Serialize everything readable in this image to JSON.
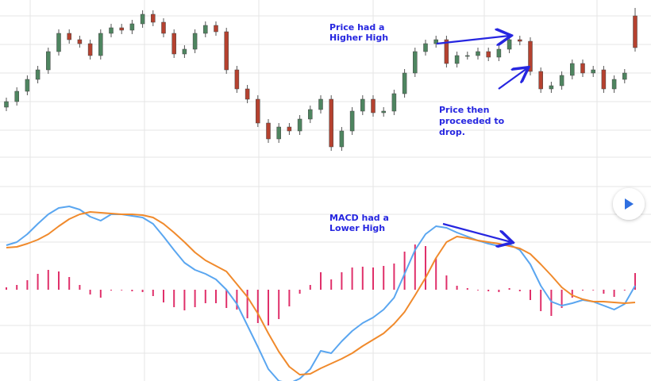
{
  "chart_data": [
    {
      "type": "candlestick",
      "open": [
        85,
        92,
        105,
        120,
        132,
        155,
        178,
        170,
        165,
        150,
        178,
        185,
        182,
        190,
        202,
        192,
        178,
        152,
        158,
        178,
        188,
        180,
        132,
        108,
        95,
        65,
        45,
        60,
        55,
        70,
        82,
        95,
        35,
        55,
        80,
        95,
        78,
        80,
        102,
        128,
        155,
        165,
        170,
        140,
        150,
        150,
        155,
        148,
        158,
        170,
        168,
        130,
        108,
        112,
        125,
        140,
        128,
        132,
        108,
        120,
        200
      ],
      "high": [
        97,
        110,
        125,
        137,
        160,
        183,
        183,
        175,
        170,
        183,
        190,
        190,
        195,
        207,
        207,
        197,
        183,
        163,
        183,
        193,
        193,
        185,
        137,
        113,
        100,
        70,
        65,
        65,
        75,
        87,
        100,
        100,
        60,
        85,
        100,
        100,
        85,
        107,
        133,
        160,
        170,
        175,
        175,
        155,
        155,
        160,
        160,
        163,
        175,
        175,
        173,
        135,
        117,
        130,
        145,
        145,
        137,
        137,
        125,
        133,
        210
      ],
      "low": [
        80,
        87,
        100,
        115,
        127,
        150,
        165,
        160,
        145,
        145,
        173,
        177,
        177,
        185,
        187,
        173,
        147,
        147,
        153,
        173,
        175,
        127,
        103,
        90,
        60,
        40,
        40,
        50,
        50,
        65,
        77,
        30,
        30,
        50,
        75,
        73,
        73,
        75,
        97,
        123,
        150,
        160,
        135,
        135,
        145,
        145,
        143,
        143,
        153,
        163,
        125,
        103,
        103,
        107,
        120,
        123,
        123,
        103,
        103,
        115,
        155
      ],
      "close": [
        92,
        105,
        120,
        132,
        155,
        178,
        170,
        165,
        150,
        178,
        185,
        182,
        190,
        202,
        192,
        178,
        152,
        158,
        178,
        188,
        180,
        132,
        108,
        95,
        65,
        45,
        60,
        55,
        70,
        82,
        95,
        35,
        55,
        80,
        95,
        78,
        80,
        102,
        128,
        155,
        165,
        170,
        140,
        150,
        150,
        155,
        148,
        158,
        170,
        168,
        130,
        108,
        112,
        125,
        140,
        128,
        132,
        108,
        120,
        128,
        160
      ],
      "up_color": "#4e8560",
      "down_color": "#b5412f",
      "ylim": [
        0,
        220
      ],
      "grid": true,
      "annotations": [
        {
          "lines": [
            "Price had a",
            "Higher High"
          ],
          "color": "#2626e0"
        },
        {
          "lines": [
            "Price then",
            "proceeded to",
            "drop."
          ],
          "color": "#2626e0"
        }
      ]
    },
    {
      "type": "macd",
      "lines": [
        {
          "color": "#5aa6f0",
          "values": [
            56,
            60,
            70,
            83,
            95,
            103,
            105,
            101,
            92,
            87,
            95,
            95,
            93,
            91,
            83,
            67,
            50,
            34,
            25,
            20,
            13,
            0,
            -18,
            -45,
            -72,
            -100,
            -115,
            -118,
            -112,
            -100,
            -77,
            -80,
            -65,
            -52,
            -42,
            -35,
            -25,
            -10,
            20,
            50,
            70,
            80,
            78,
            72,
            67,
            62,
            58,
            55,
            57,
            50,
            32,
            5,
            -15,
            -20,
            -17,
            -13,
            -15,
            -20,
            -25,
            -18,
            5
          ]
        },
        {
          "color": "#f08a2c",
          "values": [
            53,
            54,
            58,
            63,
            70,
            80,
            89,
            95,
            98,
            97,
            96,
            95,
            95,
            94,
            91,
            83,
            72,
            60,
            47,
            37,
            30,
            23,
            7,
            -9,
            -30,
            -55,
            -78,
            -97,
            -107,
            -106,
            -99,
            -93,
            -87,
            -80,
            -71,
            -63,
            -55,
            -43,
            -28,
            -7,
            15,
            40,
            60,
            67,
            65,
            62,
            60,
            58,
            55,
            52,
            45,
            32,
            18,
            3,
            -7,
            -12,
            -15,
            -15,
            -16,
            -17,
            -16
          ]
        }
      ],
      "histogram": {
        "color": "#e0306a",
        "values": [
          3,
          6,
          12,
          20,
          25,
          23,
          16,
          6,
          -6,
          -10,
          -1,
          0,
          -2,
          -3,
          -8,
          -16,
          -22,
          -26,
          -22,
          -17,
          -17,
          -23,
          -25,
          -36,
          -42,
          -45,
          -37,
          -21,
          -5,
          6,
          22,
          13,
          22,
          28,
          29,
          28,
          30,
          33,
          48,
          57,
          55,
          40,
          18,
          5,
          2,
          0,
          -2,
          -3,
          2,
          -2,
          -13,
          -27,
          -33,
          -23,
          -10,
          -1,
          0,
          -5,
          -9,
          -1,
          21
        ]
      },
      "ylim": [
        -120,
        140
      ],
      "grid": true,
      "annotations": [
        {
          "lines": [
            "MACD had a",
            "Lower High"
          ],
          "color": "#2626e0"
        }
      ]
    }
  ]
}
